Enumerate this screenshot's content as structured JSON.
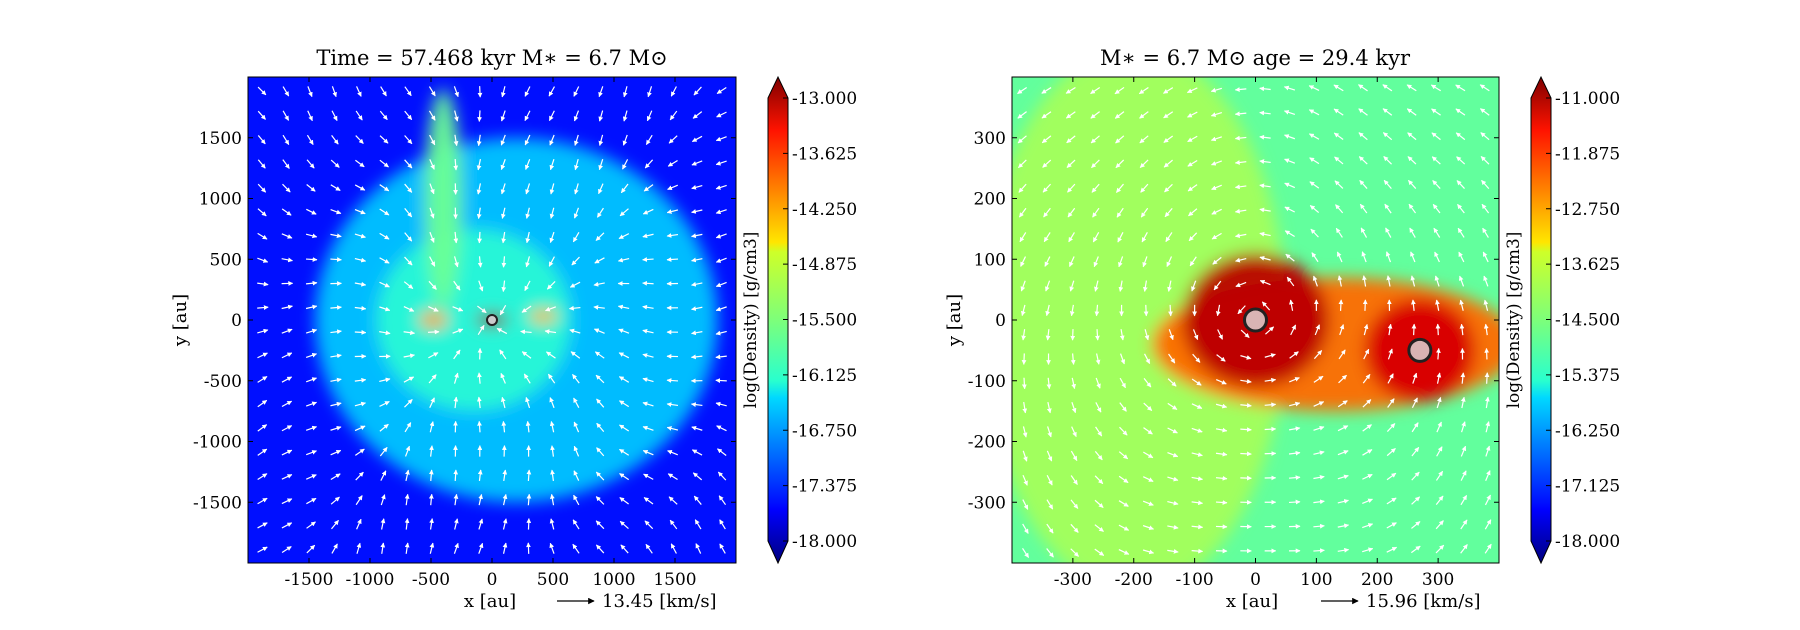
{
  "chart_data": [
    {
      "type": "heatmap",
      "title": "Time = 57.468 kyr    M$_*$ = 6.7 M$_\\odot$",
      "title_display": "Time = 57.468 kyr    M∗ = 6.7 M⊙",
      "xlabel": "x [au]",
      "ylabel": "y [au]",
      "xlim": [
        -2000,
        2000
      ],
      "ylim": [
        -2000,
        2000
      ],
      "xticks": [
        -1500,
        -1000,
        -500,
        0,
        500,
        1000,
        1500
      ],
      "yticks": [
        -1500,
        -1000,
        -500,
        0,
        500,
        1000,
        1500
      ],
      "colorbar": {
        "label": "log(Density) [g/cm3]",
        "min": -18.0,
        "max": -13.0,
        "ticks": [
          "-13.000",
          "-13.625",
          "-14.250",
          "-14.875",
          "-15.500",
          "-16.125",
          "-16.750",
          "-17.375",
          "-18.000"
        ]
      },
      "background_level": -17.3,
      "features": [
        {
          "kind": "envelope",
          "x": 200,
          "y": 0,
          "rx": 1650,
          "ry": 1500,
          "level": -16.3
        },
        {
          "kind": "envelope",
          "x": -150,
          "y": 0,
          "rx": 800,
          "ry": 750,
          "level": -15.9
        },
        {
          "kind": "streamer",
          "x": -400,
          "y": 1000,
          "rx": 150,
          "ry": 900,
          "level": -15.6
        },
        {
          "kind": "clump",
          "x": -480,
          "y": 0,
          "rx": 120,
          "ry": 70,
          "level": -14.4
        },
        {
          "kind": "clump",
          "x": 420,
          "y": 30,
          "rx": 120,
          "ry": 60,
          "level": -14.5
        },
        {
          "kind": "disk",
          "x": 0,
          "y": 0,
          "rx": 130,
          "ry": 55,
          "level": -13.0
        }
      ],
      "stars": [
        {
          "x": 0,
          "y": 0
        }
      ],
      "vector_key": {
        "label": "13.45 [km/s]"
      }
    },
    {
      "type": "heatmap",
      "title": "M$_*$ = 6.7 M$_\\odot$       age = 29.4 kyr",
      "title_display": "M∗ = 6.7 M⊙        age = 29.4 kyr",
      "xlabel": "x [au]",
      "ylabel": "y [au]",
      "xlim": [
        -400,
        400
      ],
      "ylim": [
        -400,
        400
      ],
      "xticks": [
        -300,
        -200,
        -100,
        0,
        100,
        200,
        300
      ],
      "yticks": [
        -300,
        -200,
        -100,
        0,
        100,
        200,
        300
      ],
      "colorbar": {
        "label": "log(Density) [g/cm3]",
        "min": -18.0,
        "max": -11.0,
        "ticks": [
          "-11.000",
          "-11.875",
          "-12.750",
          "-13.625",
          "-14.500",
          "-15.375",
          "-16.250",
          "-17.125",
          "-18.000"
        ]
      },
      "background_level": -14.7,
      "features": [
        {
          "kind": "envelope",
          "x": -200,
          "y": 0,
          "rx": 250,
          "ry": 450,
          "level": -14.2
        },
        {
          "kind": "bridge",
          "x": 130,
          "y": -40,
          "rx": 300,
          "ry": 110,
          "level": -12.6
        },
        {
          "kind": "disk",
          "x": 0,
          "y": 0,
          "rx": 120,
          "ry": 110,
          "level": -11.4
        },
        {
          "kind": "disk",
          "x": 270,
          "y": -50,
          "rx": 90,
          "ry": 85,
          "level": -11.6
        }
      ],
      "stars": [
        {
          "x": 0,
          "y": 0
        },
        {
          "x": 270,
          "y": -50
        }
      ],
      "vector_key": {
        "label": "15.96 [km/s]"
      }
    }
  ]
}
